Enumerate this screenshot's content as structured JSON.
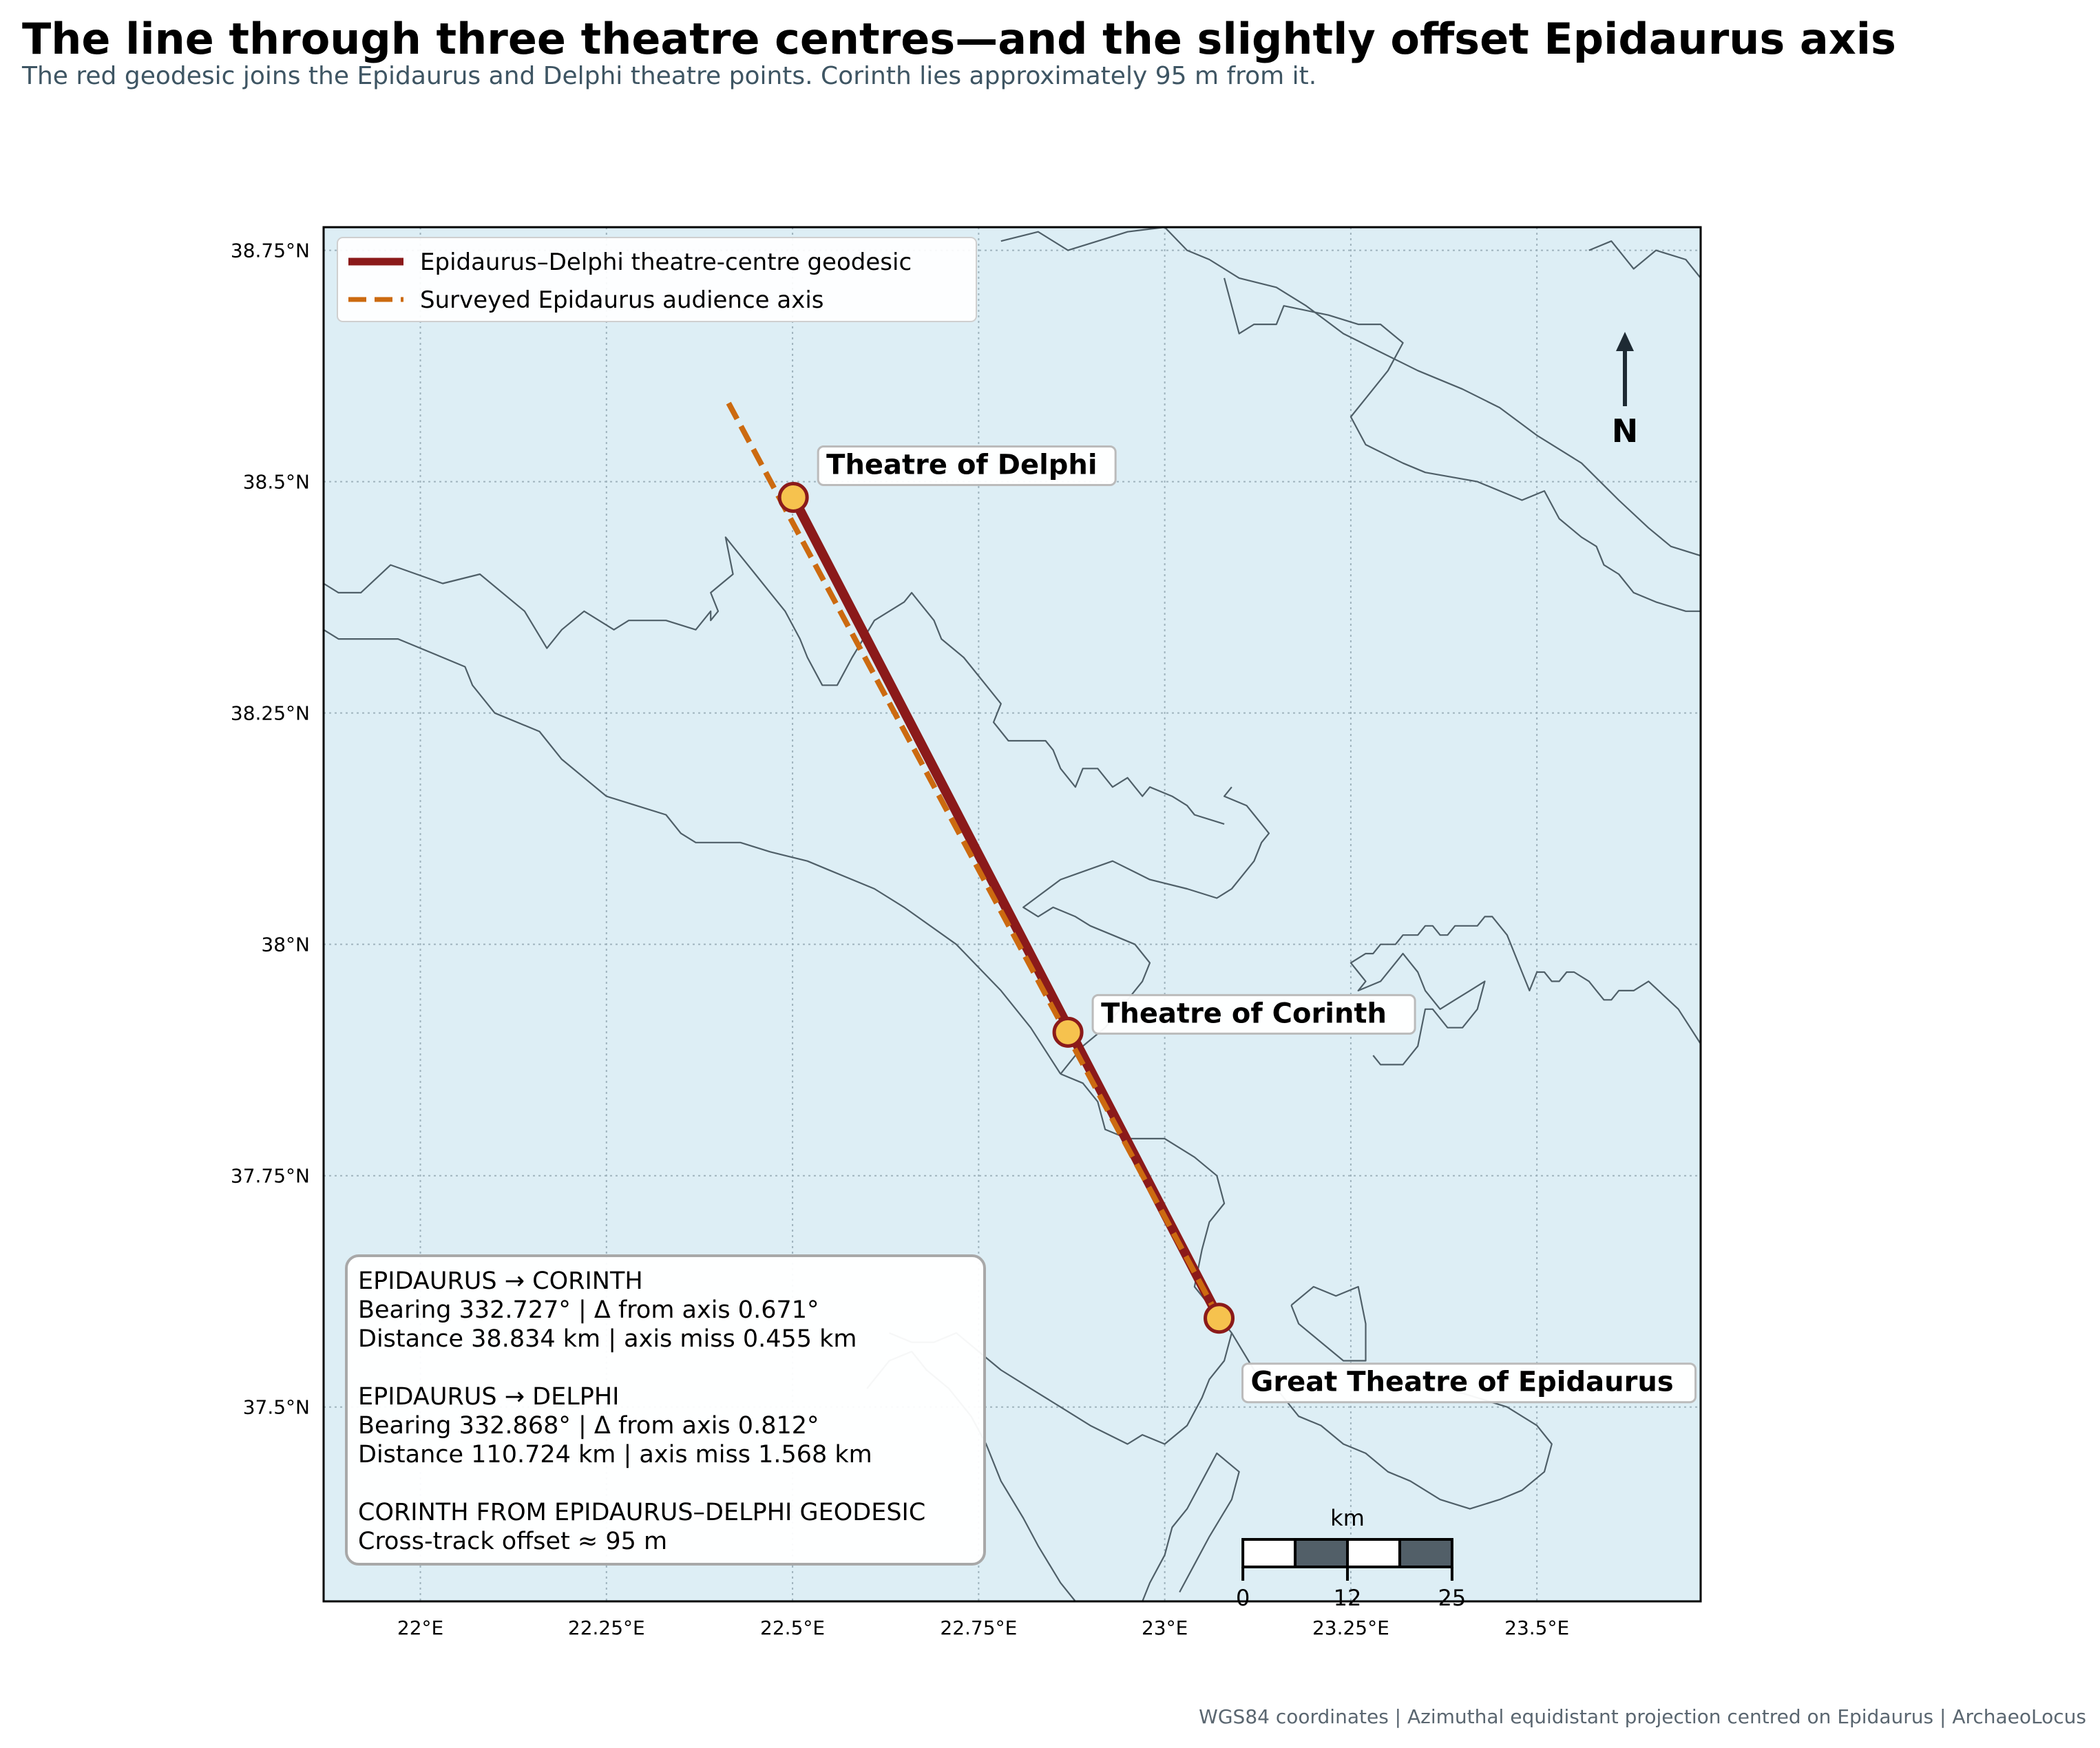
{
  "title": "The line through three theatre centres—and the slightly offset Epidaurus axis",
  "subtitle": "The red geodesic joins the Epidaurus and Delphi theatre points. Corinth lies approximately 95 m from it.",
  "footer": "WGS84 coordinates | Azimuthal equidistant projection centred on Epidaurus | ArchaeoLocus",
  "map": {
    "lon_range": [
      21.87,
      23.72
    ],
    "lat_range": [
      37.29,
      38.775
    ],
    "x_ticks": [
      {
        "value": 22.0,
        "label": "22°E"
      },
      {
        "value": 22.25,
        "label": "22.25°E"
      },
      {
        "value": 22.5,
        "label": "22.5°E"
      },
      {
        "value": 22.75,
        "label": "22.75°E"
      },
      {
        "value": 23.0,
        "label": "23°E"
      },
      {
        "value": 23.25,
        "label": "23.25°E"
      },
      {
        "value": 23.5,
        "label": "23.5°E"
      }
    ],
    "y_ticks": [
      {
        "value": 38.75,
        "label": "38.75°N"
      },
      {
        "value": 38.5,
        "label": "38.5°N"
      },
      {
        "value": 38.25,
        "label": "38.25°N"
      },
      {
        "value": 38.0,
        "label": "38°N"
      },
      {
        "value": 37.75,
        "label": "37.75°N"
      },
      {
        "value": 37.5,
        "label": "37.5°N"
      }
    ],
    "colors": {
      "sea": "#ddeef5",
      "coast": "#4f5f68",
      "geodesic": "#8b1a1a",
      "axis": "#cc6a10",
      "marker_fill": "#f6c24e",
      "marker_edge": "#8b1a1a",
      "grid": "#9fb3bd"
    },
    "legend": [
      {
        "name": "Epidaurus–Delphi theatre-centre geodesic",
        "color": "#8b1a1a",
        "style": "solid"
      },
      {
        "name": "Surveyed Epidaurus audience axis",
        "color": "#cc6a10",
        "style": "dashed"
      }
    ],
    "places": [
      {
        "name": "Theatre of Delphi",
        "lon": 22.501,
        "lat": 38.483
      },
      {
        "name": "Theatre of Corinth",
        "lon": 22.87,
        "lat": 37.905
      },
      {
        "name": "Great Theatre of Epidaurus",
        "lon": 23.073,
        "lat": 37.596
      }
    ],
    "geodesic": [
      {
        "lon": 23.073,
        "lat": 37.596
      },
      {
        "lon": 22.501,
        "lat": 38.483
      }
    ],
    "audience_axis": [
      {
        "lon": 23.073,
        "lat": 37.596
      },
      {
        "lon": 22.412,
        "lat": 38.588
      }
    ],
    "north_label": "N",
    "scale_bar": {
      "unit": "km",
      "labels": [
        "0",
        "12",
        "25"
      ],
      "start_lon": 23.105,
      "end_lon": 23.386,
      "segments": 4
    },
    "coastlines": [
      [
        [
          21.87,
          38.39
        ],
        [
          21.89,
          38.38
        ],
        [
          21.92,
          38.38
        ],
        [
          21.96,
          38.41
        ],
        [
          22.03,
          38.39
        ],
        [
          22.08,
          38.4
        ],
        [
          22.14,
          38.36
        ],
        [
          22.17,
          38.32
        ],
        [
          22.19,
          38.34
        ],
        [
          22.22,
          38.36
        ],
        [
          22.26,
          38.34
        ],
        [
          22.28,
          38.35
        ],
        [
          22.33,
          38.35
        ],
        [
          22.37,
          38.34
        ],
        [
          22.39,
          38.36
        ],
        [
          22.39,
          38.35
        ],
        [
          22.4,
          38.36
        ],
        [
          22.39,
          38.38
        ],
        [
          22.42,
          38.4
        ],
        [
          22.41,
          38.44
        ],
        [
          22.43,
          38.42
        ],
        [
          22.45,
          38.4
        ],
        [
          22.47,
          38.38
        ],
        [
          22.49,
          38.36
        ],
        [
          22.51,
          38.33
        ],
        [
          22.52,
          38.31
        ],
        [
          22.54,
          38.28
        ],
        [
          22.56,
          38.28
        ],
        [
          22.58,
          38.31
        ],
        [
          22.61,
          38.35
        ],
        [
          22.63,
          38.36
        ],
        [
          22.65,
          38.37
        ],
        [
          22.66,
          38.38
        ],
        [
          22.67,
          38.37
        ],
        [
          22.68,
          38.36
        ],
        [
          22.69,
          38.35
        ],
        [
          22.7,
          38.33
        ],
        [
          22.73,
          38.31
        ],
        [
          22.76,
          38.28
        ],
        [
          22.78,
          38.26
        ],
        [
          22.77,
          38.24
        ],
        [
          22.79,
          38.22
        ],
        [
          22.84,
          38.22
        ],
        [
          22.85,
          38.21
        ],
        [
          22.86,
          38.19
        ],
        [
          22.88,
          38.17
        ],
        [
          22.89,
          38.19
        ],
        [
          22.91,
          38.19
        ],
        [
          22.93,
          38.17
        ],
        [
          22.95,
          38.18
        ],
        [
          22.96,
          38.17
        ],
        [
          22.97,
          38.16
        ],
        [
          22.98,
          38.17
        ],
        [
          23.01,
          38.16
        ],
        [
          23.03,
          38.15
        ],
        [
          23.04,
          38.14
        ],
        [
          23.08,
          38.13
        ]
      ],
      [
        [
          21.87,
          38.34
        ],
        [
          21.89,
          38.33
        ],
        [
          21.97,
          38.33
        ],
        [
          22.03,
          38.31
        ],
        [
          22.06,
          38.3
        ],
        [
          22.07,
          38.28
        ],
        [
          22.1,
          38.25
        ],
        [
          22.16,
          38.23
        ],
        [
          22.19,
          38.2
        ],
        [
          22.25,
          38.16
        ],
        [
          22.29,
          38.15
        ],
        [
          22.33,
          38.14
        ],
        [
          22.35,
          38.12
        ],
        [
          22.37,
          38.11
        ],
        [
          22.43,
          38.11
        ],
        [
          22.47,
          38.1
        ],
        [
          22.52,
          38.09
        ],
        [
          22.55,
          38.08
        ],
        [
          22.61,
          38.06
        ],
        [
          22.65,
          38.04
        ],
        [
          22.72,
          38.0
        ],
        [
          22.78,
          37.95
        ],
        [
          22.82,
          37.91
        ],
        [
          22.86,
          37.86
        ]
      ],
      [
        [
          22.86,
          37.86
        ],
        [
          22.89,
          37.89
        ],
        [
          22.92,
          37.91
        ],
        [
          22.95,
          37.94
        ],
        [
          22.97,
          37.96
        ],
        [
          22.98,
          37.98
        ],
        [
          22.96,
          38.0
        ],
        [
          22.93,
          38.01
        ],
        [
          22.9,
          38.02
        ],
        [
          22.88,
          38.03
        ],
        [
          22.85,
          38.04
        ],
        [
          22.83,
          38.03
        ],
        [
          22.81,
          38.04
        ],
        [
          22.86,
          38.07
        ],
        [
          22.93,
          38.09
        ],
        [
          22.98,
          38.07
        ],
        [
          23.03,
          38.06
        ],
        [
          23.07,
          38.05
        ],
        [
          23.09,
          38.06
        ],
        [
          23.12,
          38.09
        ],
        [
          23.13,
          38.11
        ],
        [
          23.14,
          38.12
        ],
        [
          23.13,
          38.13
        ],
        [
          23.12,
          38.14
        ],
        [
          23.11,
          38.15
        ],
        [
          23.08,
          38.16
        ],
        [
          23.09,
          38.17
        ]
      ],
      [
        [
          23.73,
          37.88
        ],
        [
          23.69,
          37.93
        ],
        [
          23.65,
          37.96
        ],
        [
          23.63,
          37.95
        ],
        [
          23.61,
          37.95
        ],
        [
          23.6,
          37.94
        ],
        [
          23.59,
          37.94
        ],
        [
          23.58,
          37.95
        ],
        [
          23.57,
          37.96
        ],
        [
          23.55,
          37.97
        ],
        [
          23.54,
          37.97
        ],
        [
          23.53,
          37.96
        ],
        [
          23.52,
          37.96
        ],
        [
          23.51,
          37.97
        ],
        [
          23.5,
          37.97
        ],
        [
          23.49,
          37.95
        ],
        [
          23.48,
          37.97
        ],
        [
          23.47,
          37.99
        ],
        [
          23.46,
          38.01
        ],
        [
          23.45,
          38.02
        ],
        [
          23.44,
          38.03
        ],
        [
          23.43,
          38.03
        ],
        [
          23.42,
          38.02
        ],
        [
          23.4,
          38.02
        ],
        [
          23.39,
          38.02
        ],
        [
          23.38,
          38.01
        ],
        [
          23.37,
          38.01
        ],
        [
          23.36,
          38.02
        ],
        [
          23.35,
          38.02
        ],
        [
          23.34,
          38.01
        ],
        [
          23.32,
          38.01
        ],
        [
          23.31,
          38.0
        ],
        [
          23.29,
          38.0
        ],
        [
          23.28,
          37.99
        ],
        [
          23.27,
          37.99
        ],
        [
          23.25,
          37.98
        ],
        [
          23.26,
          37.97
        ],
        [
          23.27,
          37.96
        ],
        [
          23.26,
          37.95
        ],
        [
          23.29,
          37.96
        ],
        [
          23.31,
          37.98
        ],
        [
          23.32,
          37.99
        ],
        [
          23.33,
          37.98
        ],
        [
          23.34,
          37.97
        ],
        [
          23.35,
          37.95
        ],
        [
          23.37,
          37.93
        ],
        [
          23.39,
          37.94
        ],
        [
          23.41,
          37.95
        ],
        [
          23.43,
          37.96
        ],
        [
          23.42,
          37.93
        ],
        [
          23.4,
          37.91
        ],
        [
          23.38,
          37.91
        ],
        [
          23.37,
          37.92
        ],
        [
          23.36,
          37.93
        ],
        [
          23.35,
          37.93
        ],
        [
          23.34,
          37.89
        ],
        [
          23.32,
          37.87
        ],
        [
          23.29,
          37.87
        ],
        [
          23.28,
          37.88
        ]
      ],
      [
        [
          22.86,
          37.86
        ],
        [
          22.89,
          37.85
        ],
        [
          22.91,
          37.83
        ],
        [
          22.92,
          37.8
        ],
        [
          22.95,
          37.79
        ],
        [
          23.0,
          37.79
        ],
        [
          23.04,
          37.77
        ],
        [
          23.07,
          37.75
        ],
        [
          23.08,
          37.72
        ],
        [
          23.06,
          37.7
        ],
        [
          23.05,
          37.67
        ],
        [
          23.04,
          37.63
        ],
        [
          23.07,
          37.6
        ],
        [
          23.09,
          37.58
        ],
        [
          23.08,
          37.55
        ],
        [
          23.06,
          37.53
        ],
        [
          23.05,
          37.51
        ],
        [
          23.03,
          37.48
        ],
        [
          23.0,
          37.46
        ],
        [
          22.97,
          37.47
        ],
        [
          22.95,
          37.46
        ],
        [
          22.9,
          37.48
        ],
        [
          22.86,
          37.5
        ],
        [
          22.82,
          37.52
        ],
        [
          22.78,
          37.54
        ],
        [
          22.75,
          37.56
        ],
        [
          22.72,
          37.58
        ],
        [
          22.69,
          37.57
        ],
        [
          22.66,
          37.57
        ],
        [
          22.63,
          37.58
        ]
      ],
      [
        [
          23.09,
          37.58
        ],
        [
          23.12,
          37.54
        ],
        [
          23.15,
          37.52
        ],
        [
          23.18,
          37.49
        ],
        [
          23.21,
          37.48
        ],
        [
          23.24,
          37.46
        ],
        [
          23.27,
          37.45
        ],
        [
          23.3,
          37.43
        ],
        [
          23.33,
          37.42
        ],
        [
          23.37,
          37.4
        ],
        [
          23.41,
          37.39
        ],
        [
          23.45,
          37.4
        ],
        [
          23.48,
          37.41
        ],
        [
          23.51,
          37.43
        ],
        [
          23.52,
          37.46
        ],
        [
          23.5,
          37.48
        ],
        [
          23.46,
          37.5
        ],
        [
          23.42,
          37.51
        ],
        [
          23.38,
          37.52
        ]
      ],
      [
        [
          23.17,
          37.61
        ],
        [
          23.2,
          37.63
        ],
        [
          23.23,
          37.62
        ],
        [
          23.26,
          37.63
        ],
        [
          23.27,
          37.59
        ],
        [
          23.27,
          37.55
        ],
        [
          23.24,
          37.55
        ],
        [
          23.21,
          37.57
        ],
        [
          23.18,
          37.59
        ],
        [
          23.17,
          37.61
        ]
      ],
      [
        [
          22.6,
          37.52
        ],
        [
          22.63,
          37.55
        ],
        [
          22.66,
          37.56
        ],
        [
          22.68,
          37.54
        ],
        [
          22.71,
          37.52
        ],
        [
          22.74,
          37.49
        ],
        [
          22.76,
          37.46
        ],
        [
          22.78,
          37.42
        ],
        [
          22.81,
          37.38
        ],
        [
          22.83,
          37.35
        ],
        [
          22.86,
          37.31
        ],
        [
          22.88,
          37.29
        ]
      ],
      [
        [
          23.02,
          37.3
        ],
        [
          23.04,
          37.33
        ],
        [
          23.06,
          37.36
        ],
        [
          23.09,
          37.4
        ],
        [
          23.1,
          37.43
        ],
        [
          23.07,
          37.45
        ],
        [
          23.05,
          37.42
        ],
        [
          23.03,
          37.39
        ],
        [
          23.01,
          37.37
        ],
        [
          23.0,
          37.34
        ],
        [
          22.98,
          37.31
        ],
        [
          22.97,
          37.29
        ]
      ],
      [
        [
          23.08,
          38.72
        ],
        [
          23.1,
          38.66
        ],
        [
          23.12,
          38.67
        ],
        [
          23.15,
          38.67
        ],
        [
          23.16,
          38.69
        ],
        [
          23.22,
          38.68
        ],
        [
          23.26,
          38.67
        ],
        [
          23.29,
          38.67
        ],
        [
          23.32,
          38.65
        ],
        [
          23.3,
          38.62
        ],
        [
          23.27,
          38.59
        ],
        [
          23.25,
          38.57
        ],
        [
          23.27,
          38.54
        ],
        [
          23.32,
          38.52
        ],
        [
          23.35,
          38.51
        ],
        [
          23.42,
          38.5
        ],
        [
          23.48,
          38.48
        ],
        [
          23.51,
          38.49
        ],
        [
          23.53,
          38.46
        ],
        [
          23.56,
          38.44
        ],
        [
          23.58,
          38.43
        ],
        [
          23.59,
          38.41
        ],
        [
          23.61,
          38.4
        ],
        [
          23.63,
          38.38
        ],
        [
          23.66,
          38.37
        ],
        [
          23.7,
          38.36
        ],
        [
          23.72,
          38.36
        ]
      ],
      [
        [
          23.0,
          38.775
        ],
        [
          23.03,
          38.75
        ],
        [
          23.06,
          38.74
        ],
        [
          23.1,
          38.72
        ],
        [
          23.15,
          38.71
        ],
        [
          23.19,
          38.69
        ],
        [
          23.24,
          38.66
        ],
        [
          23.29,
          38.64
        ],
        [
          23.34,
          38.62
        ],
        [
          23.4,
          38.6
        ],
        [
          23.45,
          38.58
        ],
        [
          23.5,
          38.55
        ],
        [
          23.56,
          38.52
        ],
        [
          23.61,
          38.48
        ],
        [
          23.65,
          38.45
        ],
        [
          23.68,
          38.43
        ],
        [
          23.72,
          38.42
        ]
      ],
      [
        [
          22.78,
          38.76
        ],
        [
          22.83,
          38.77
        ],
        [
          22.87,
          38.75
        ],
        [
          22.91,
          38.76
        ],
        [
          22.95,
          38.77
        ],
        [
          23.0,
          38.775
        ]
      ],
      [
        [
          23.57,
          38.75
        ],
        [
          23.6,
          38.76
        ],
        [
          23.63,
          38.73
        ],
        [
          23.66,
          38.75
        ],
        [
          23.7,
          38.74
        ],
        [
          23.72,
          38.72
        ]
      ]
    ],
    "info_box": {
      "lines": [
        "EPIDAURUS → CORINTH",
        "Bearing 332.727° | Δ from axis 0.671°",
        "Distance 38.834 km | axis miss 0.455 km",
        "",
        "EPIDAURUS → DELPHI",
        "Bearing 332.868° | Δ from axis 0.812°",
        "Distance 110.724 km | axis miss 1.568 km",
        "",
        "CORINTH FROM EPIDAURUS–DELPHI GEODESIC",
        "Cross-track offset ≈ 95 m"
      ]
    }
  }
}
